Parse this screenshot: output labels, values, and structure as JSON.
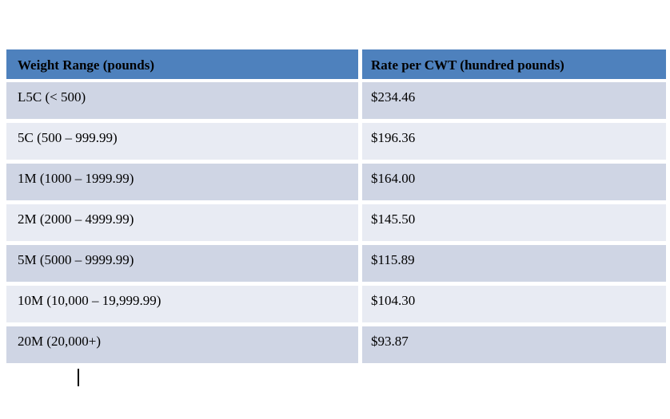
{
  "table": {
    "headers": [
      "Weight Range (pounds)",
      "Rate per CWT (hundred pounds)"
    ],
    "rows": [
      {
        "weight": "L5C (< 500)",
        "rate": "$234.46"
      },
      {
        "weight": "5C (500 – 999.99)",
        "rate": "$196.36"
      },
      {
        "weight": "1M (1000 – 1999.99)",
        "rate": "$164.00"
      },
      {
        "weight": "2M (2000 – 4999.99)",
        "rate": "$145.50"
      },
      {
        "weight": "5M (5000 – 9999.99)",
        "rate": "$115.89"
      },
      {
        "weight": "10M (10,000 – 19,999.99)",
        "rate": "$104.30"
      },
      {
        "weight": "20M (20,000+)",
        "rate": "$93.87"
      }
    ]
  },
  "colors": {
    "header_bg": "#4E81BD",
    "row_dark_bg": "#CFD5E4",
    "row_light_bg": "#E8EBF3",
    "separator": "#FFFFFF",
    "text": "#000000"
  },
  "cursor": {
    "name": "text-insertion-caret",
    "visible": true
  }
}
